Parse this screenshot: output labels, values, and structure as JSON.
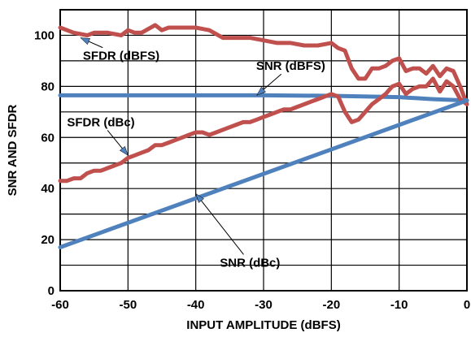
{
  "chart_data": {
    "type": "line",
    "xlabel": "INPUT AMPLITUDE (dBFS)",
    "ylabel": "SNR AND SFDR",
    "xlim": [
      -60,
      0
    ],
    "ylim": [
      0,
      110
    ],
    "x_ticks": [
      -60,
      -50,
      -40,
      -30,
      -20,
      -10,
      0
    ],
    "y_ticks": [
      0,
      20,
      40,
      60,
      80,
      100
    ],
    "grid": true,
    "series": [
      {
        "name": "SFDR (dBFS)",
        "color": "#c0504d",
        "x": [
          -60,
          -58,
          -56,
          -55,
          -53,
          -51,
          -50,
          -49,
          -48,
          -46,
          -45,
          -44,
          -42,
          -40,
          -38,
          -36,
          -35,
          -34,
          -32,
          -30,
          -28,
          -26,
          -24,
          -22,
          -20,
          -19,
          -18,
          -17,
          -16,
          -15,
          -14,
          -13,
          -12,
          -11,
          -10,
          -9,
          -8,
          -7,
          -6,
          -5,
          -4,
          -3,
          -2,
          -1,
          0
        ],
        "values": [
          103,
          101,
          100,
          101,
          101,
          100,
          102,
          101,
          101,
          104,
          102,
          103,
          103,
          103,
          102,
          99,
          99,
          99,
          99,
          98,
          97,
          97,
          96,
          96,
          97,
          95,
          94,
          87,
          83,
          83,
          87,
          87,
          88,
          90,
          91,
          86,
          87,
          87,
          85,
          88,
          84,
          87,
          86,
          80,
          73
        ]
      },
      {
        "name": "SNR (dBFS)",
        "color": "#4f81bd",
        "x": [
          -60,
          -50,
          -40,
          -30,
          -20,
          -10,
          -5,
          0
        ],
        "values": [
          76.5,
          76.5,
          76.5,
          76.5,
          76.3,
          75.8,
          75,
          74.5
        ]
      },
      {
        "name": "SFDR (dBc)",
        "color": "#c0504d",
        "x": [
          -60,
          -59,
          -58,
          -57,
          -56,
          -55,
          -54,
          -53,
          -52,
          -51,
          -50,
          -49,
          -48,
          -47,
          -46,
          -45,
          -44,
          -43,
          -42,
          -41,
          -40,
          -39,
          -38,
          -37,
          -36,
          -35,
          -34,
          -33,
          -32,
          -31,
          -30,
          -29,
          -28,
          -27,
          -26,
          -25,
          -24,
          -23,
          -22,
          -21,
          -20,
          -19,
          -18,
          -17,
          -16,
          -15,
          -14,
          -13,
          -12,
          -11,
          -10,
          -9,
          -8,
          -7,
          -6,
          -5,
          -4,
          -3,
          -2,
          -1,
          0
        ],
        "values": [
          43,
          43,
          44,
          44,
          46,
          47,
          47,
          48,
          49,
          50,
          52,
          53,
          54,
          55,
          57,
          57,
          58,
          59,
          60,
          61,
          62,
          62,
          61,
          62,
          63,
          64,
          65,
          66,
          66,
          67,
          68,
          69,
          70,
          71,
          71,
          72,
          73,
          74,
          75,
          76,
          77,
          76,
          70,
          66,
          67,
          70,
          73,
          75,
          77,
          80,
          81,
          77,
          79,
          80,
          80,
          83,
          78,
          82,
          80,
          75,
          73
        ]
      },
      {
        "name": "SNR (dBc)",
        "color": "#4f81bd",
        "x": [
          -60,
          0
        ],
        "values": [
          17,
          74.5
        ]
      }
    ],
    "annotations": [
      {
        "label": "SFDR (dBFS)",
        "text_at": [
          -51,
          92
        ],
        "arrow_to": [
          -57,
          99
        ]
      },
      {
        "label": "SNR (dBFS)",
        "text_at": [
          -26,
          88
        ],
        "arrow_to": [
          -31,
          76.5
        ]
      },
      {
        "label": "SFDR (dBc)",
        "text_at": [
          -54,
          66
        ],
        "arrow_to": [
          -50,
          53
        ]
      },
      {
        "label": "SNR (dBc)",
        "text_at": [
          -32,
          11
        ],
        "arrow_to": [
          -40,
          38
        ]
      }
    ]
  }
}
